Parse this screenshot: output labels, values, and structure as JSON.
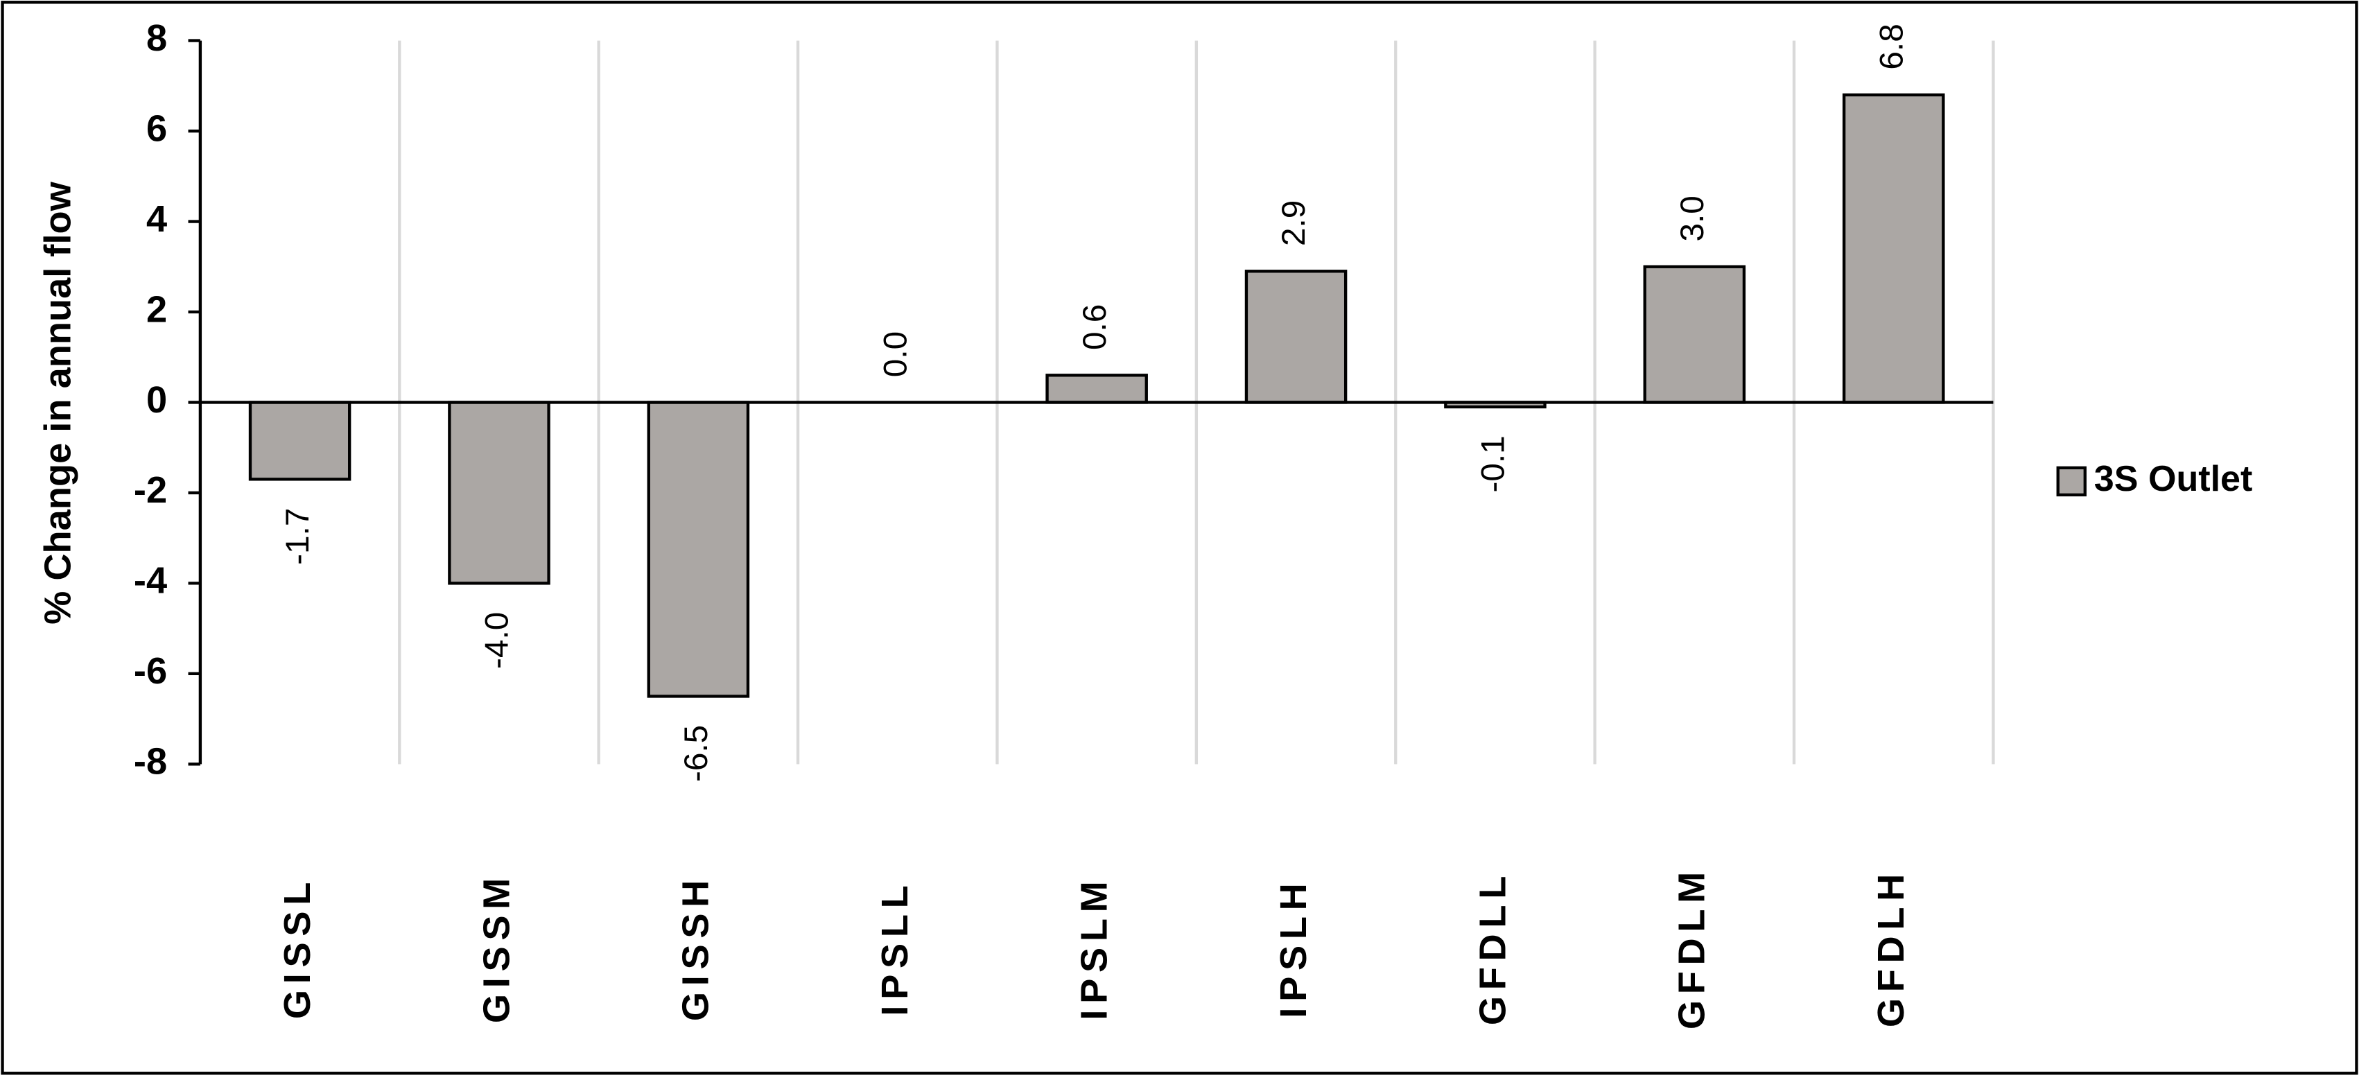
{
  "chart_data": {
    "type": "bar",
    "categories": [
      "GISSL",
      "GISSM",
      "GISSH",
      "IPSLL",
      "IPSLM",
      "IPSLH",
      "GFDLL",
      "GFDLM",
      "GFDLH"
    ],
    "series": [
      {
        "name": "3S Outlet",
        "color": "#aba7a4",
        "values": [
          -1.7,
          -4.0,
          -6.5,
          0.0,
          0.6,
          2.9,
          -0.1,
          3.0,
          6.8
        ],
        "value_labels": [
          "-1.7",
          "-4.0",
          "-6.5",
          "0.0",
          "0.6",
          "2.9",
          "-0.1",
          "3.0",
          "6.8"
        ]
      }
    ],
    "y_label": "% Change in annual flow",
    "ylim": [
      -8,
      8
    ],
    "yticks": [
      -8,
      -6,
      -4,
      -2,
      0,
      2,
      4,
      6,
      8
    ],
    "grid": true,
    "legend": "right"
  }
}
